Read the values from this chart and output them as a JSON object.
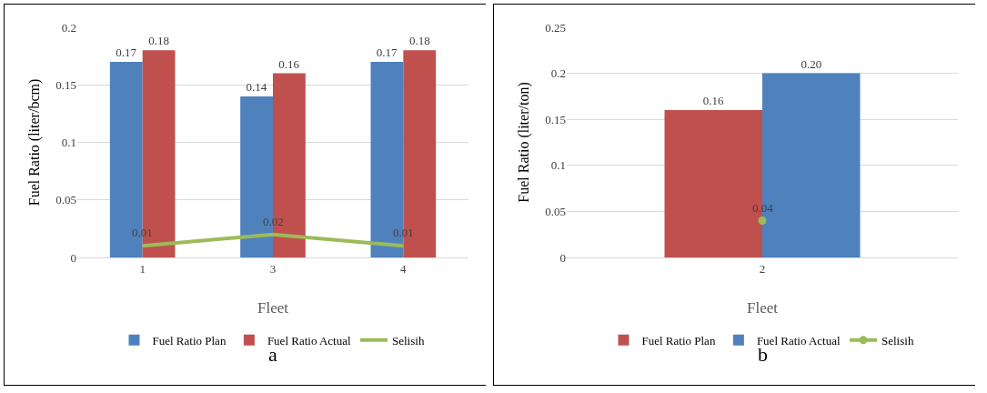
{
  "chart_data": [
    {
      "type": "bar",
      "xlabel": "Fleet",
      "ylabel": "Fuel Ratio (liter/bcm)",
      "categories": [
        "1",
        "3",
        "4"
      ],
      "ylim": [
        0,
        0.2
      ],
      "yticks": [
        0,
        0.05,
        0.1,
        0.15,
        0.2
      ],
      "grid": "y",
      "legend": "bottom",
      "annotations": [
        "a"
      ],
      "series": [
        {
          "name": "Fuel Ratio Plan",
          "color": "#4f81bd",
          "values": [
            0.17,
            0.14,
            0.17
          ],
          "value_labels": [
            "0.17",
            "0.14",
            "0.17"
          ]
        },
        {
          "name": "Fuel Ratio Actual",
          "color": "#c0504d",
          "values": [
            0.18,
            0.16,
            0.18
          ],
          "value_labels": [
            "0.18",
            "0.16",
            "0.18"
          ]
        },
        {
          "name": "Selisih",
          "type": "line",
          "color": "#9bbb59",
          "values": [
            0.01,
            0.02,
            0.01
          ],
          "value_labels": [
            "0.01",
            "0.02",
            "0.01"
          ]
        }
      ]
    },
    {
      "type": "bar",
      "xlabel": "Fleet",
      "ylabel": "Fuel Ratio (liter/ton)",
      "categories": [
        "2"
      ],
      "ylim": [
        0,
        0.25
      ],
      "yticks": [
        0,
        0.05,
        0.1,
        0.15,
        0.2,
        0.25
      ],
      "grid": "y",
      "legend": "bottom",
      "annotations": [
        "b"
      ],
      "series": [
        {
          "name": "Fuel Ratio Plan",
          "color": "#c0504d",
          "values": [
            0.16
          ],
          "value_labels": [
            "0.16"
          ]
        },
        {
          "name": "Fuel Ratio Actual",
          "color": "#4f81bd",
          "values": [
            0.2
          ],
          "value_labels": [
            "0.20"
          ]
        },
        {
          "name": "Selisih",
          "type": "line",
          "color": "#9bbb59",
          "marker": "circle",
          "values": [
            0.04
          ],
          "value_labels": [
            "0.04"
          ]
        }
      ]
    }
  ]
}
